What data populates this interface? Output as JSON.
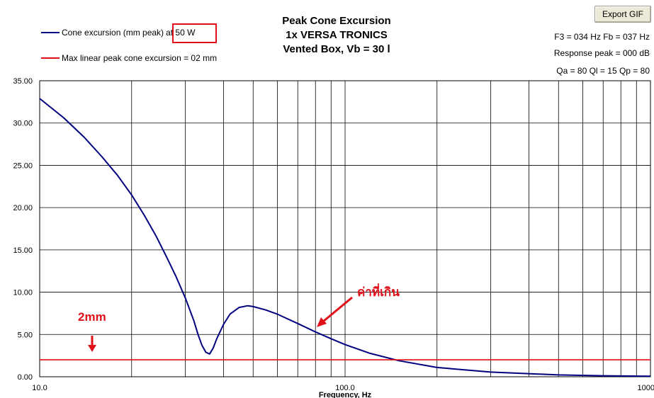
{
  "toolbar": {
    "export_label": "Export GIF"
  },
  "chart_data": {
    "type": "line",
    "title": [
      "Peak Cone Excursion",
      "1x VERSA TRONICS",
      "Vented Box, Vb = 30 l"
    ],
    "xlabel": "Frequency, Hz",
    "ylabel": "",
    "x_scale": "log",
    "xlim": [
      10,
      1000
    ],
    "ylim": [
      0,
      35
    ],
    "grid": true,
    "legend_position": "top-left",
    "x_tick_labels": [
      "10.0",
      "100.0",
      "1000"
    ],
    "y_tick_labels": [
      "35.00",
      "30.00",
      "25.00",
      "20.00",
      "15.00",
      "10.00",
      "5.00",
      "0.00"
    ],
    "series": [
      {
        "name": "Cone excursion (mm peak) at 50 W",
        "color": "#000080",
        "x": [
          10,
          12,
          14,
          16,
          18,
          20,
          22,
          24,
          26,
          28,
          30,
          32,
          33,
          34,
          35,
          36,
          37,
          38,
          40,
          42,
          45,
          48,
          50,
          55,
          60,
          70,
          80,
          90,
          100,
          120,
          150,
          200,
          300,
          500,
          700,
          1000
        ],
        "y": [
          32.9,
          30.6,
          28.3,
          26.0,
          23.8,
          21.5,
          19.1,
          16.7,
          14.2,
          11.8,
          9.3,
          6.6,
          5.0,
          3.7,
          2.9,
          2.7,
          3.4,
          4.5,
          6.2,
          7.4,
          8.2,
          8.4,
          8.3,
          7.9,
          7.4,
          6.3,
          5.3,
          4.5,
          3.8,
          2.8,
          1.9,
          1.1,
          0.55,
          0.22,
          0.12,
          0.06
        ]
      },
      {
        "name": "Max linear peak cone excursion = 02 mm",
        "color": "#e0101a",
        "x": [
          10,
          1000
        ],
        "y": [
          2,
          2
        ]
      }
    ],
    "annotations": [
      "2mm",
      "ค่าที่เกิน"
    ]
  },
  "legend": {
    "items": [
      {
        "label_main": "Cone excursion (mm peak) ",
        "label_highlight": "at 50 W",
        "color": "#000080"
      },
      {
        "label_main": "Max linear peak cone excursion = 02 mm",
        "label_highlight": "",
        "color": "#e0101a"
      }
    ]
  },
  "stats": {
    "line1": "F3 = 034 Hz  Fb = 037 Hz",
    "line2": "Response peak = 000 dB",
    "line3": "Qa = 80  Ql = 15  Qp = 80"
  },
  "annotation_color": "#e0101a"
}
